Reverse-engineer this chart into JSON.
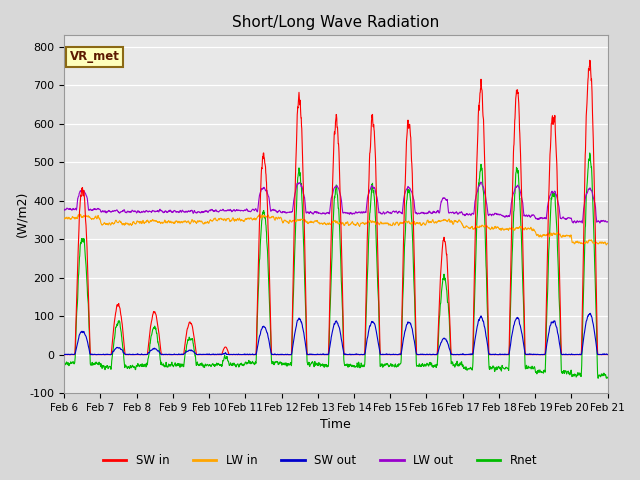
{
  "title": "Short/Long Wave Radiation",
  "xlabel": "Time",
  "ylabel": "(W/m2)",
  "ylim": [
    -100,
    830
  ],
  "yticks": [
    -100,
    0,
    100,
    200,
    300,
    400,
    500,
    600,
    700,
    800
  ],
  "xtick_labels": [
    "Feb 6",
    "Feb 7",
    "Feb 8",
    "Feb 9",
    "Feb 10",
    "Feb 11",
    "Feb 12",
    "Feb 13",
    "Feb 14",
    "Feb 15",
    "Feb 16",
    "Feb 17",
    "Feb 18",
    "Feb 19",
    "Feb 20",
    "Feb 21"
  ],
  "series_colors": {
    "SW_in": "#ff0000",
    "LW_in": "#ffa500",
    "SW_out": "#0000cc",
    "LW_out": "#9900cc",
    "Rnet": "#00bb00"
  },
  "legend_labels": [
    "SW in",
    "LW in",
    "SW out",
    "LW out",
    "Rnet"
  ],
  "annotation_text": "VR_met",
  "bg_color": "#d8d8d8",
  "plot_bg_color": "#e8e8e8",
  "n_days": 15,
  "n_pts_per_day": 144
}
